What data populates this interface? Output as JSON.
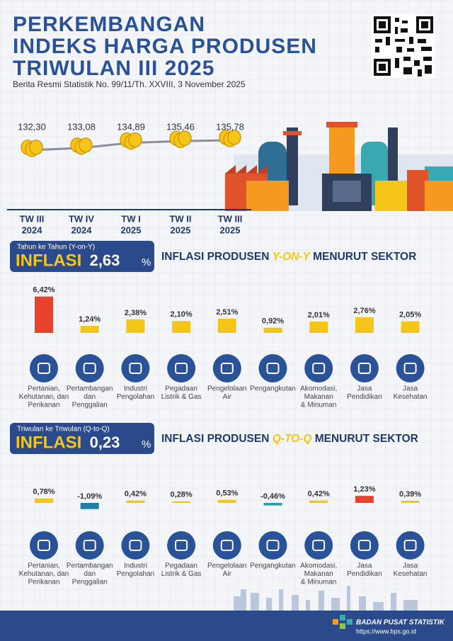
{
  "header": {
    "title": [
      "PERKEMBANGAN",
      "INDEKS HARGA PRODUSEN",
      "TRIWULAN III 2025"
    ],
    "subtitle": "Berita Resmi Statistik No. 99/11/Th. XXVIII, 3 November 2025"
  },
  "sections": [
    {
      "banner_label": "Tahun ke Tahun (Y-on-Y)",
      "banner_title": "INFLASI",
      "value": "2,63",
      "unit": "%",
      "heading": [
        "INFLASI PRODUSEN ",
        "Y-ON-Y",
        " MENURUT SEKTOR"
      ]
    },
    {
      "banner_label": "Triwulan ke Triwulan (Q-to-Q)",
      "banner_title": "INFLASI",
      "value": "0,23",
      "unit": "%",
      "heading": [
        "INFLASI PRODUSEN ",
        "Q-TO-Q",
        " MENURUT SEKTOR"
      ]
    }
  ],
  "chart_data": [
    {
      "type": "line",
      "categories": [
        [
          "TW III",
          "2024"
        ],
        [
          "TW IV",
          "2024"
        ],
        [
          "TW I",
          "2025"
        ],
        [
          "TW II",
          "2025"
        ],
        [
          "TW III",
          "2025"
        ]
      ],
      "values": [
        132.3,
        133.08,
        134.89,
        135.46,
        135.78
      ],
      "value_labels": [
        "132,30",
        "133,08",
        "134,89",
        "135,46",
        "135,78"
      ],
      "color": "#8a8f99"
    },
    {
      "type": "bar",
      "categories": [
        [
          "Pertanian,",
          "Kehutanan, dan",
          "Perikanan"
        ],
        [
          "Pertambangan",
          "dan",
          "Penggalian"
        ],
        [
          "Industri",
          "Pengolahan"
        ],
        [
          "Pegadaan",
          "Listrik & Gas"
        ],
        [
          "Pengelolaan",
          "Air"
        ],
        [
          "Pengangkutan"
        ],
        [
          "Akomodasi,",
          "Makanan",
          "& Minuman"
        ],
        [
          "Jasa",
          "Pendidikan"
        ],
        [
          "Jasa",
          "Kesehatan"
        ]
      ],
      "values": [
        6.42,
        1.24,
        2.38,
        2.1,
        2.51,
        0.92,
        2.01,
        2.76,
        2.05
      ],
      "value_labels": [
        "6,42%",
        "1,24%",
        "2,38%",
        "2,10%",
        "2,51%",
        "0,92%",
        "2,01%",
        "2,76%",
        "2,05%"
      ],
      "colors": [
        "#e8412c",
        "#f5c518",
        "#f5c518",
        "#f5c518",
        "#f5c518",
        "#f5c518",
        "#f5c518",
        "#f5c518",
        "#f5c518"
      ]
    },
    {
      "type": "bar",
      "categories": [
        [
          "Pertanian,",
          "Kehutanan, dan",
          "Perikanan"
        ],
        [
          "Pertambangan",
          "dan",
          "Penggalian"
        ],
        [
          "Industri",
          "Pengolahan"
        ],
        [
          "Pegadaan",
          "Listrik & Gas"
        ],
        [
          "Pengelolaan",
          "Air"
        ],
        [
          "Pengangkutan"
        ],
        [
          "Akomodasi,",
          "Makanan",
          "& Minuman"
        ],
        [
          "Jasa",
          "Pendidikan"
        ],
        [
          "Jasa",
          "Kesehatan"
        ]
      ],
      "values": [
        0.78,
        -1.09,
        0.42,
        0.28,
        0.53,
        -0.46,
        0.42,
        1.23,
        0.39
      ],
      "value_labels": [
        "0,78%",
        "-1,09%",
        "0,42%",
        "0,28%",
        "0,53%",
        "-0,46%",
        "0,42%",
        "1,23%",
        "0,39%"
      ],
      "colors": [
        "#f5c518",
        "#1f7fa8",
        "#f5c518",
        "#f5c518",
        "#f5c518",
        "#2a9fa8",
        "#f5c518",
        "#e8412c",
        "#f5c518"
      ]
    }
  ],
  "footer": {
    "org": "BADAN PUSAT STATISTIK",
    "url": "https://www.bps.go.id"
  }
}
